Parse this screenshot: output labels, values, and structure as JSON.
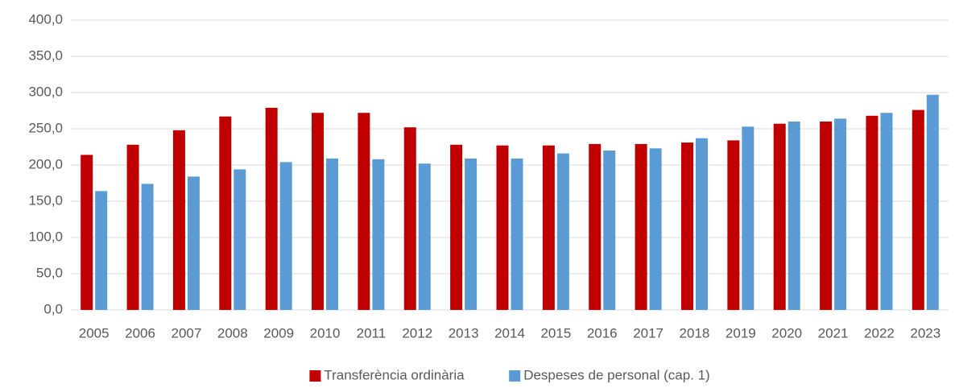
{
  "chart_data": {
    "type": "bar",
    "categories": [
      "2005",
      "2006",
      "2007",
      "2008",
      "2009",
      "2010",
      "2011",
      "2012",
      "2013",
      "2014",
      "2015",
      "2016",
      "2017",
      "2018",
      "2019",
      "2020",
      "2021",
      "2022",
      "2023"
    ],
    "series": [
      {
        "name": "Transferència ordinària",
        "color": "#c00000",
        "values": [
          214,
          228,
          248,
          267,
          279,
          272,
          272,
          252,
          228,
          227,
          227,
          229,
          229,
          231,
          234,
          257,
          260,
          268,
          276
        ]
      },
      {
        "name": "Despeses de personal (cap. 1)",
        "color": "#5b9bd5",
        "values": [
          164,
          174,
          184,
          194,
          204,
          209,
          208,
          202,
          209,
          209,
          216,
          220,
          223,
          237,
          253,
          260,
          264,
          272,
          297
        ]
      }
    ],
    "ylim": [
      0,
      400
    ],
    "yticks": [
      {
        "value": 0,
        "label": "0,0"
      },
      {
        "value": 50,
        "label": "50,0"
      },
      {
        "value": 100,
        "label": "100,0"
      },
      {
        "value": 150,
        "label": "150,0"
      },
      {
        "value": 200,
        "label": "200,0"
      },
      {
        "value": 250,
        "label": "250,0"
      },
      {
        "value": 300,
        "label": "300,0"
      },
      {
        "value": 350,
        "label": "350,0"
      },
      {
        "value": 400,
        "label": "400,0"
      }
    ],
    "grid": true,
    "legend": "bottom"
  }
}
